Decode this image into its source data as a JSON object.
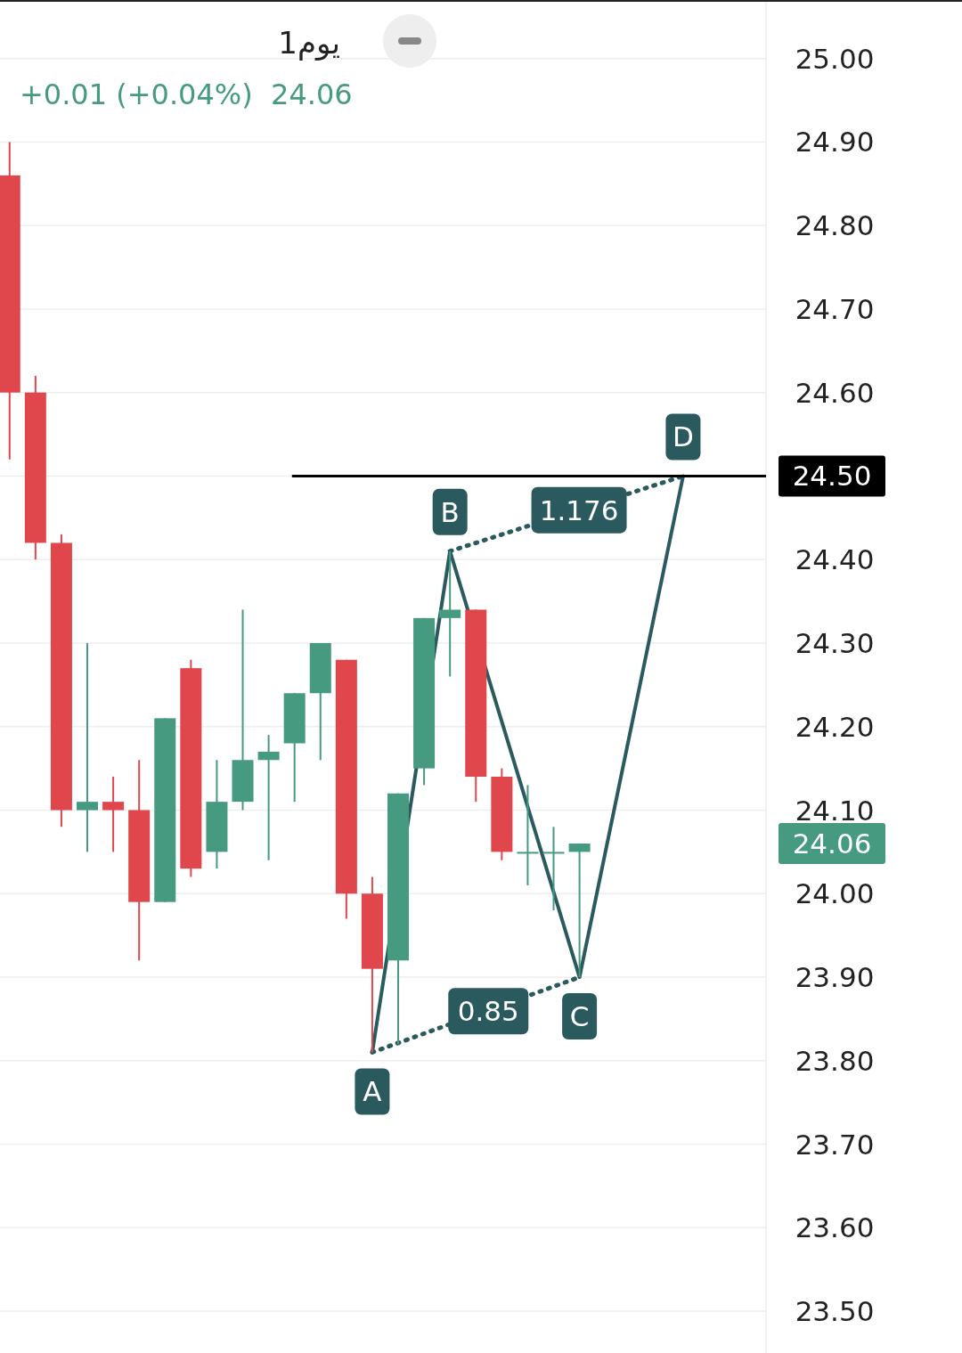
{
  "chart_data": {
    "type": "candlestick",
    "title": "1يوم",
    "subtitle": "+0.01 (+0.04%)  24.06",
    "categories": [
      null,
      null,
      null,
      null,
      null,
      null,
      null,
      null,
      null,
      null,
      null,
      null,
      null,
      null,
      null,
      null,
      null,
      null,
      null,
      null,
      null,
      null,
      null,
      null,
      null,
      null,
      null
    ],
    "ohlc": [
      [
        24.86,
        24.9,
        24.52,
        24.6
      ],
      [
        24.6,
        24.62,
        24.4,
        24.42
      ],
      [
        24.42,
        24.43,
        24.08,
        24.1
      ],
      [
        24.1,
        24.3,
        24.05,
        24.11
      ],
      [
        24.11,
        24.14,
        24.05,
        24.1
      ],
      [
        24.1,
        24.16,
        23.92,
        23.99
      ],
      [
        23.99,
        24.21,
        23.99,
        24.21
      ],
      [
        24.27,
        24.28,
        24.02,
        24.03
      ],
      [
        24.05,
        24.16,
        24.03,
        24.11
      ],
      [
        24.11,
        24.34,
        24.1,
        24.16
      ],
      [
        24.16,
        24.19,
        24.04,
        24.17
      ],
      [
        24.18,
        24.24,
        24.11,
        24.24
      ],
      [
        24.24,
        24.3,
        24.16,
        24.3
      ],
      [
        24.28,
        24.28,
        23.97,
        24.0
      ],
      [
        24.0,
        24.02,
        23.81,
        23.91
      ],
      [
        23.92,
        24.12,
        23.82,
        24.12
      ],
      [
        24.15,
        24.33,
        24.13,
        24.33
      ],
      [
        24.33,
        24.41,
        24.26,
        24.34
      ],
      [
        24.34,
        24.34,
        24.11,
        24.14
      ],
      [
        24.14,
        24.15,
        24.04,
        24.05
      ],
      [
        24.05,
        24.13,
        24.01,
        24.05
      ],
      [
        24.05,
        24.08,
        23.98,
        24.05
      ],
      [
        24.05,
        24.06,
        23.9,
        24.06
      ],
      null,
      null,
      null,
      null
    ],
    "colors": [
      "#e0474c",
      "#e0474c",
      "#e0474c",
      "#459a80",
      "#e0474c",
      "#e0474c",
      "#459a80",
      "#e0474c",
      "#459a80",
      "#459a80",
      "#459a80",
      "#459a80",
      "#459a80",
      "#e0474c",
      "#e0474c",
      "#459a80",
      "#459a80",
      "#459a80",
      "#e0474c",
      "#e0474c",
      "#459a80",
      "#459a80",
      "#459a80",
      null,
      null,
      null,
      null
    ],
    "series": [
      {
        "type": "line",
        "color": "#2a5a5e",
        "line_style": "solid",
        "values": [
          null,
          null,
          null,
          null,
          null,
          null,
          null,
          null,
          null,
          null,
          null,
          null,
          null,
          null,
          23.81,
          null,
          null,
          24.41,
          null,
          null,
          null,
          null,
          23.9,
          null,
          null,
          null,
          24.5
        ],
        "value_labels": [
          null,
          null,
          null,
          null,
          null,
          null,
          null,
          null,
          null,
          null,
          null,
          null,
          null,
          null,
          "A",
          null,
          null,
          "B",
          null,
          null,
          null,
          null,
          "C",
          null,
          null,
          null,
          "D"
        ]
      },
      {
        "type": "line",
        "name": "0.85",
        "color": "#2a5a5e",
        "line_style": "dotted",
        "values": [
          null,
          null,
          null,
          null,
          null,
          null,
          null,
          null,
          null,
          null,
          null,
          null,
          null,
          null,
          23.81,
          null,
          null,
          null,
          null,
          null,
          null,
          null,
          23.9,
          null,
          null,
          null,
          null
        ]
      },
      {
        "type": "line",
        "name": "1.176",
        "color": "#2a5a5e",
        "line_style": "dotted",
        "values": [
          null,
          null,
          null,
          null,
          null,
          null,
          null,
          null,
          null,
          null,
          null,
          null,
          null,
          null,
          null,
          null,
          null,
          24.41,
          null,
          null,
          null,
          null,
          null,
          null,
          null,
          null,
          24.5
        ]
      }
    ],
    "ylim": [
      23.45,
      25.07
    ],
    "yticks": [
      {
        "value": 23.5,
        "label": "23.50"
      },
      {
        "value": 23.6,
        "label": "23.60"
      },
      {
        "value": 23.7,
        "label": "23.70"
      },
      {
        "value": 23.8,
        "label": "23.80"
      },
      {
        "value": 23.9,
        "label": "23.90"
      },
      {
        "value": 24.0,
        "label": "24.00"
      },
      {
        "value": 24.1,
        "label": "24.10"
      },
      {
        "value": 24.2,
        "label": "24.20"
      },
      {
        "value": 24.3,
        "label": "24.30"
      },
      {
        "value": 24.4,
        "label": "24.40"
      },
      {
        "value": 24.5,
        "label": "24.50"
      },
      {
        "value": 24.6,
        "label": "24.60"
      },
      {
        "value": 24.7,
        "label": "24.70"
      },
      {
        "value": 24.8,
        "label": "24.80"
      },
      {
        "value": 24.9,
        "label": "24.90"
      },
      {
        "value": 25.0,
        "label": "25.00"
      }
    ],
    "grid": "y",
    "ref_lines": [
      {
        "axis": "y",
        "value": 24.5,
        "label": "24.50",
        "color": "#000000",
        "line_style": "solid"
      }
    ],
    "annotations": [
      "24.06"
    ]
  }
}
